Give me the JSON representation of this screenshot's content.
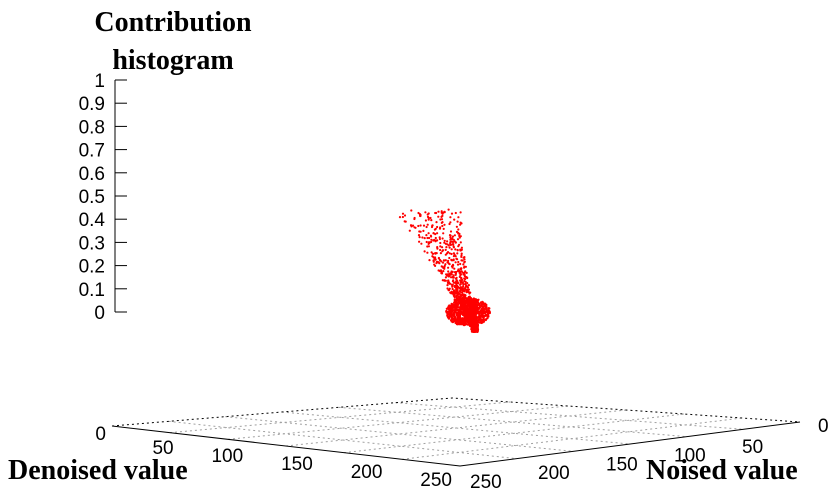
{
  "chart_data": {
    "type": "scatter",
    "title": "",
    "zlabel_line1": "Contribution",
    "zlabel_line2": "histogram",
    "xlabel": "Denoised value",
    "ylabel": "Noised value",
    "z_ticks": [
      "1",
      "0.9",
      "0.8",
      "0.7",
      "0.6",
      "0.5",
      "0.4",
      "0.3",
      "0.2",
      "0.1",
      "0"
    ],
    "base_z_tick": "0",
    "x_ticks": [
      "50",
      "100",
      "150",
      "200",
      "250"
    ],
    "y_ticks": [
      "0",
      "50",
      "100",
      "150",
      "200",
      "250"
    ],
    "xlim": [
      0,
      255
    ],
    "ylim": [
      0,
      255
    ],
    "zlim": [
      0,
      1
    ],
    "point_color": "#ff0000",
    "cluster": {
      "x_center": 250,
      "y_center": 250,
      "z_max": 0.61,
      "note": "dense cloud of contribution values concentrated near the diagonal at high intensity"
    },
    "samples": [
      {
        "x": 250,
        "y": 250,
        "z": 0.0
      },
      {
        "x": 245,
        "y": 248,
        "z": 0.05
      },
      {
        "x": 240,
        "y": 246,
        "z": 0.1
      },
      {
        "x": 236,
        "y": 245,
        "z": 0.15
      },
      {
        "x": 232,
        "y": 244,
        "z": 0.2
      },
      {
        "x": 230,
        "y": 243,
        "z": 0.25
      },
      {
        "x": 228,
        "y": 243,
        "z": 0.3
      },
      {
        "x": 226,
        "y": 242,
        "z": 0.36
      },
      {
        "x": 224,
        "y": 242,
        "z": 0.45
      },
      {
        "x": 222,
        "y": 241,
        "z": 0.59
      },
      {
        "x": 250,
        "y": 232,
        "z": 0.61
      },
      {
        "x": 250,
        "y": 236,
        "z": 0.44
      },
      {
        "x": 248,
        "y": 240,
        "z": 0.3
      }
    ],
    "grid": true
  }
}
